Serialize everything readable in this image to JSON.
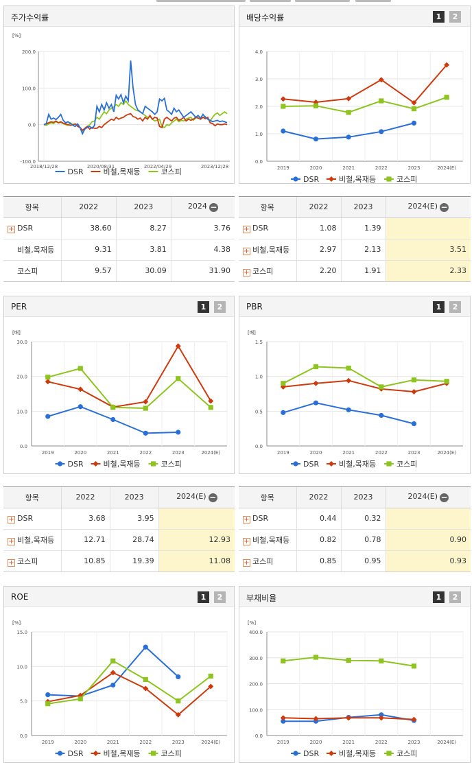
{
  "series_names": [
    "DSR",
    "비철,목재등",
    "코스피"
  ],
  "colors": {
    "dsr": "#2a6fd6",
    "metal": "#cc3a0e",
    "kospi": "#8dc41f"
  },
  "icons": {
    "expand": "plus-icon",
    "collapse": "minus-icon"
  },
  "pager": {
    "p1": "1",
    "p2": "2"
  },
  "charts": {
    "stock": {
      "title": "주가수익률",
      "unit": "[%]",
      "chart_data": {
        "type": "line",
        "x_tick_labels": [
          "2018/12/28",
          "2020/08/31",
          "2022/04/29",
          "2023/12/28"
        ],
        "y_ticks": [
          "200.0",
          "100.0",
          "0.0",
          "-100.0"
        ],
        "ylim": [
          -100,
          200
        ],
        "legend": "bottom",
        "series": [
          {
            "name": "DSR",
            "values": [
              0,
              3,
              28,
              15,
              18,
              14,
              20,
              28,
              12,
              5,
              8,
              3,
              -2,
              -5,
              2,
              -8,
              -25,
              -12,
              -8,
              -5,
              -10,
              -2,
              50,
              35,
              55,
              40,
              60,
              45,
              55,
              35,
              80,
              70,
              82,
              60,
              78,
              65,
              175,
              100,
              55,
              40,
              35,
              30,
              50,
              45,
              40,
              35,
              28,
              35,
              70,
              65,
              72,
              40,
              35,
              28,
              45,
              35,
              40,
              30,
              20,
              25,
              30,
              35,
              28,
              20,
              25,
              18,
              28,
              20,
              15,
              12,
              8,
              10,
              12,
              8,
              10,
              8,
              5
            ]
          },
          {
            "name": "비철,목재등",
            "values": [
              0,
              2,
              5,
              8,
              6,
              10,
              5,
              8,
              4,
              2,
              0,
              -2,
              0,
              2,
              -5,
              -8,
              -15,
              -10,
              -5,
              -12,
              -8,
              -10,
              -10,
              -5,
              -8,
              0,
              5,
              10,
              15,
              12,
              20,
              15,
              18,
              20,
              25,
              28,
              30,
              22,
              20,
              15,
              18,
              10,
              20,
              15,
              25,
              15,
              20,
              18,
              -5,
              -8,
              15,
              20,
              15,
              10,
              18,
              20,
              12,
              15,
              20,
              10,
              15,
              12,
              15,
              20,
              18,
              15,
              20,
              16,
              20,
              5,
              3,
              -3,
              2,
              0,
              0,
              2,
              0
            ]
          },
          {
            "name": "코스피",
            "values": [
              0,
              -2,
              2,
              5,
              3,
              8,
              5,
              6,
              3,
              0,
              -2,
              5,
              0,
              2,
              0,
              -8,
              -18,
              -10,
              -5,
              0,
              8,
              10,
              20,
              15,
              25,
              35,
              30,
              40,
              45,
              48,
              55,
              50,
              60,
              55,
              65,
              55,
              50,
              45,
              40,
              38,
              35,
              30,
              25,
              20,
              22,
              15,
              10,
              12,
              15,
              -5,
              -8,
              0,
              -2,
              5,
              10,
              15,
              8,
              12,
              10,
              15,
              18,
              20,
              12,
              18,
              25,
              15,
              20,
              22,
              15,
              10,
              20,
              28,
              32,
              25,
              30,
              35,
              30
            ]
          }
        ]
      }
    },
    "dividend": {
      "title": "배당수익률",
      "chart_data": {
        "type": "line",
        "categories": [
          "2019",
          "2020",
          "2021",
          "2022",
          "2023",
          "2024(E)"
        ],
        "y_ticks": [
          "4.0",
          "3.0",
          "2.0",
          "1.0",
          "0.0"
        ],
        "ylim": [
          0,
          4
        ],
        "legend": "bottom",
        "series": [
          {
            "name": "DSR",
            "values": [
              1.1,
              0.81,
              0.88,
              1.08,
              1.39,
              null
            ]
          },
          {
            "name": "비철,목재등",
            "values": [
              2.27,
              2.15,
              2.28,
              2.97,
              2.13,
              3.51
            ]
          },
          {
            "name": "코스피",
            "values": [
              2.0,
              2.02,
              1.78,
              2.2,
              1.91,
              2.33
            ]
          }
        ]
      }
    },
    "per": {
      "title": "PER",
      "unit": "[배]",
      "chart_data": {
        "type": "line",
        "categories": [
          "2019",
          "2020",
          "2021",
          "2022",
          "2023",
          "2024(E)"
        ],
        "y_ticks": [
          "30.0",
          "20.0",
          "10.0",
          "0.0"
        ],
        "ylim": [
          0,
          30
        ],
        "legend": "bottom",
        "series": [
          {
            "name": "DSR",
            "values": [
              8.5,
              11.3,
              7.6,
              3.68,
              3.95,
              null
            ]
          },
          {
            "name": "비철,목재등",
            "values": [
              18.5,
              16.3,
              11.2,
              12.71,
              28.74,
              12.93
            ]
          },
          {
            "name": "코스피",
            "values": [
              19.8,
              22.3,
              11.1,
              10.85,
              19.39,
              11.08
            ]
          }
        ]
      }
    },
    "pbr": {
      "title": "PBR",
      "unit": "[배]",
      "chart_data": {
        "type": "line",
        "categories": [
          "2019",
          "2020",
          "2021",
          "2022",
          "2023",
          "2024(E)"
        ],
        "y_ticks": [
          "1.5",
          "1.0",
          "0.5",
          "0.0"
        ],
        "ylim": [
          0,
          1.5
        ],
        "legend": "bottom",
        "series": [
          {
            "name": "DSR",
            "values": [
              0.48,
              0.62,
              0.52,
              0.44,
              0.32,
              null
            ]
          },
          {
            "name": "비철,목재등",
            "values": [
              0.85,
              0.9,
              0.94,
              0.82,
              0.78,
              0.9
            ]
          },
          {
            "name": "코스피",
            "values": [
              0.9,
              1.14,
              1.12,
              0.85,
              0.95,
              0.93
            ]
          }
        ]
      }
    },
    "roe": {
      "title": "ROE",
      "unit": "[%]",
      "chart_data": {
        "type": "line",
        "categories": [
          "2019",
          "2020",
          "2021",
          "2022",
          "2023",
          "2024(E)"
        ],
        "y_ticks": [
          "15.0",
          "10.0",
          "5.0",
          "0.0"
        ],
        "ylim": [
          0,
          15
        ],
        "legend": "bottom",
        "series": [
          {
            "name": "DSR",
            "values": [
              5.9,
              5.7,
              7.3,
              12.8,
              8.5,
              null
            ]
          },
          {
            "name": "비철,목재등",
            "values": [
              4.9,
              5.8,
              9.1,
              6.8,
              3.0,
              7.1
            ]
          },
          {
            "name": "코스피",
            "values": [
              4.6,
              5.3,
              10.8,
              8.1,
              5.0,
              8.6
            ]
          }
        ]
      }
    },
    "debt": {
      "title": "부채비율",
      "unit": "[%]",
      "chart_data": {
        "type": "line",
        "categories": [
          "2019",
          "2020",
          "2021",
          "2022",
          "2023",
          "2024(E)"
        ],
        "y_ticks": [
          "400.0",
          "300.0",
          "200.0",
          "100.0",
          "0.0"
        ],
        "ylim": [
          0,
          400
        ],
        "legend": "bottom",
        "series": [
          {
            "name": "DSR",
            "values": [
              55,
              55,
              70,
              80,
              58,
              null
            ]
          },
          {
            "name": "비철,목재등",
            "values": [
              68,
              65,
              68,
              68,
              62,
              null
            ]
          },
          {
            "name": "코스피",
            "values": [
              288,
              302,
              290,
              288,
              268,
              null
            ]
          }
        ]
      }
    }
  },
  "tables": {
    "stock": {
      "headers": [
        "항목",
        "2022",
        "2023",
        "2024"
      ],
      "rows": [
        {
          "name": "DSR",
          "expand": true,
          "values": [
            "38.60",
            "8.27",
            "3.76"
          ]
        },
        {
          "name": "비철,목재등",
          "expand": false,
          "values": [
            "9.31",
            "3.81",
            "4.38"
          ]
        },
        {
          "name": "코스피",
          "expand": false,
          "values": [
            "9.57",
            "30.09",
            "31.90"
          ]
        }
      ]
    },
    "dividend": {
      "headers": [
        "항목",
        "2022",
        "2023",
        "2024(E)"
      ],
      "rows": [
        {
          "name": "DSR",
          "expand": true,
          "values": [
            "1.08",
            "1.39",
            ""
          ]
        },
        {
          "name": "비철,목재등",
          "expand": true,
          "values": [
            "2.97",
            "2.13",
            "3.51"
          ]
        },
        {
          "name": "코스피",
          "expand": true,
          "values": [
            "2.20",
            "1.91",
            "2.33"
          ]
        }
      ]
    },
    "per": {
      "headers": [
        "항목",
        "2022",
        "2023",
        "2024(E)"
      ],
      "rows": [
        {
          "name": "DSR",
          "expand": true,
          "values": [
            "3.68",
            "3.95",
            ""
          ]
        },
        {
          "name": "비철,목재등",
          "expand": true,
          "values": [
            "12.71",
            "28.74",
            "12.93"
          ]
        },
        {
          "name": "코스피",
          "expand": true,
          "values": [
            "10.85",
            "19.39",
            "11.08"
          ]
        }
      ]
    },
    "pbr": {
      "headers": [
        "항목",
        "2022",
        "2023",
        "2024(E)"
      ],
      "rows": [
        {
          "name": "DSR",
          "expand": true,
          "values": [
            "0.44",
            "0.32",
            ""
          ]
        },
        {
          "name": "비철,목재등",
          "expand": true,
          "values": [
            "0.82",
            "0.78",
            "0.90"
          ]
        },
        {
          "name": "코스피",
          "expand": true,
          "values": [
            "0.85",
            "0.95",
            "0.93"
          ]
        }
      ]
    }
  }
}
